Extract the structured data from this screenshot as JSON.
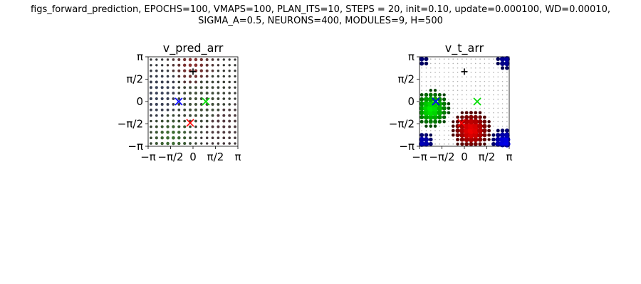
{
  "figure": {
    "title_line1": "figs_forward_prediction, EPOCHS=100, VMAPS=100, PLAN_ITS=10, STEPS = 20, init=0.10, update=0.000100, WD=0.00010,",
    "title_line2": "SIGMA_A=0.5, NEURONS=400, MODULES=9, H=500"
  },
  "chart_data": [
    {
      "type": "scatter",
      "title": "v_pred_arr",
      "xlim": [
        "−π",
        "π"
      ],
      "ylim": [
        "−π",
        "π"
      ],
      "x_ticks": [
        "−π",
        "−π/2",
        "0",
        "π/2",
        "π"
      ],
      "y_ticks": [
        "−π",
        "−π/2",
        "0",
        "π/2",
        "π"
      ],
      "grid": false,
      "grid_points": 16,
      "field": "diffuse",
      "blobs": [
        {
          "x": 0.0,
          "y": 2.5,
          "color": "#8a1a1a",
          "radius": 0.9,
          "strength": 0.55
        },
        {
          "x": -1.5,
          "y": -2.5,
          "color": "#2a6a1a",
          "radius": 1.0,
          "strength": 0.55
        },
        {
          "x": 0.5,
          "y": 0.0,
          "color": "#3a5a2a",
          "radius": 1.5,
          "strength": 0.35
        },
        {
          "x": -2.4,
          "y": 0.5,
          "color": "#2a3a6a",
          "radius": 1.2,
          "strength": 0.35
        },
        {
          "x": 2.0,
          "y": -1.5,
          "color": "#6a2a3a",
          "radius": 1.1,
          "strength": 0.3
        }
      ],
      "markers": [
        {
          "symbol": "x",
          "x": -1.0,
          "y": 0.0,
          "color": "#0000ff"
        },
        {
          "symbol": "x",
          "x": 0.9,
          "y": 0.0,
          "color": "#00dd00"
        },
        {
          "symbol": "x",
          "x": -0.2,
          "y": -1.5,
          "color": "#ff0000"
        },
        {
          "symbol": "+",
          "x": 0.0,
          "y": 2.1,
          "color": "#000000"
        }
      ]
    },
    {
      "type": "scatter",
      "title": "v_t_arr",
      "xlim": [
        "−π",
        "π"
      ],
      "ylim": [
        "−π",
        "π"
      ],
      "x_ticks": [
        "−π",
        "−π/2",
        "0",
        "π/2",
        "π"
      ],
      "y_ticks": [
        "−π",
        "−π/2",
        "0",
        "π/2",
        "π"
      ],
      "grid": false,
      "grid_points": 20,
      "field": "peaked",
      "blobs": [
        {
          "x": -2.3,
          "y": -0.5,
          "color": "#00ee00",
          "radius": 0.8,
          "strength": 1.0
        },
        {
          "x": 0.5,
          "y": -2.0,
          "color": "#ee0000",
          "radius": 0.85,
          "strength": 1.0
        },
        {
          "x": 2.9,
          "y": -2.9,
          "color": "#0000ee",
          "radius": 0.7,
          "strength": 1.0
        },
        {
          "x": -2.9,
          "y": -2.9,
          "color": "#0000ee",
          "radius": 0.55,
          "strength": 0.8
        },
        {
          "x": 2.9,
          "y": 2.9,
          "color": "#0000cc",
          "radius": 0.5,
          "strength": 0.8
        },
        {
          "x": -2.9,
          "y": 2.9,
          "color": "#0000cc",
          "radius": 0.4,
          "strength": 0.6
        }
      ],
      "markers": [
        {
          "symbol": "x",
          "x": -2.0,
          "y": 0.0,
          "color": "#0000ff"
        },
        {
          "symbol": "x",
          "x": 0.9,
          "y": 0.0,
          "color": "#00dd00"
        },
        {
          "symbol": "x",
          "x": -0.2,
          "y": -1.5,
          "color": "#ff0000"
        },
        {
          "symbol": "+",
          "x": 0.0,
          "y": 2.1,
          "color": "#000000"
        }
      ]
    }
  ]
}
